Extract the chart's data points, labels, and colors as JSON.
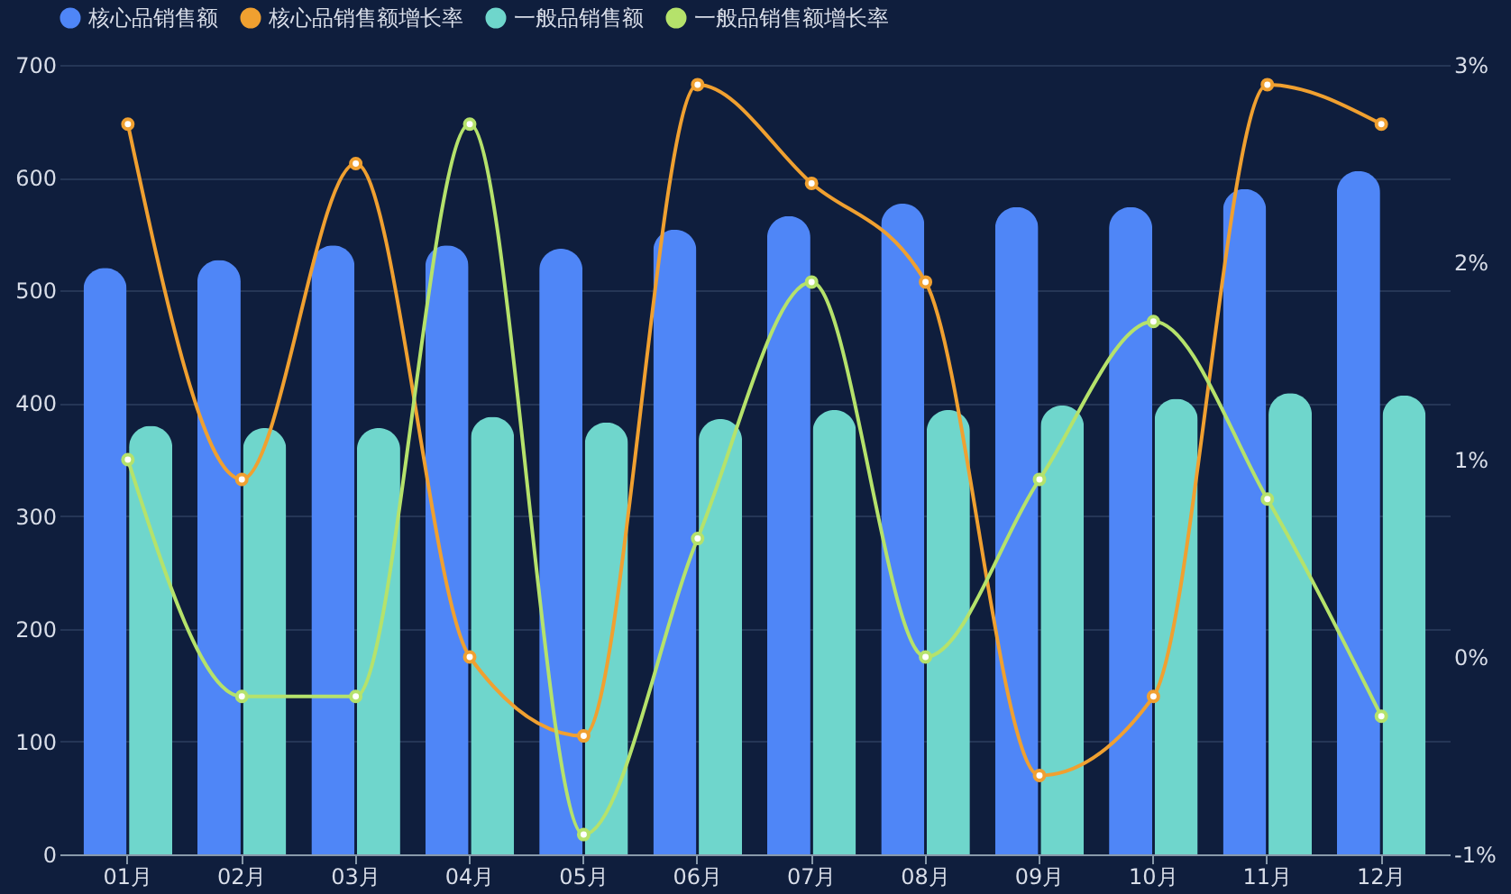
{
  "chart_data": {
    "type": "bar",
    "categories": [
      "01月",
      "02月",
      "03月",
      "04月",
      "05月",
      "06月",
      "07月",
      "08月",
      "09月",
      "10月",
      "11月",
      "12月"
    ],
    "series": [
      {
        "name": "核心品销售额",
        "color": "#4f86f7",
        "values": [
          520,
          527,
          540,
          540,
          537,
          554,
          566,
          577,
          574,
          574,
          590,
          606
        ]
      },
      {
        "name": "核心品销售额增长率",
        "type": "line",
        "axis": "y2",
        "color": "#f0a030",
        "marker": "circle",
        "values": [
          2.7,
          0.9,
          2.5,
          0,
          -0.4,
          2.9,
          2.4,
          1.9,
          -0.6,
          -0.2,
          2.9,
          2.7
        ]
      },
      {
        "name": "一般品销售额",
        "color": "#6fd6cc",
        "values": [
          380,
          378,
          378,
          388,
          383,
          386,
          394,
          394,
          398,
          404,
          409,
          407
        ]
      },
      {
        "name": "一般品销售额增长率",
        "type": "line",
        "axis": "y2",
        "color": "#b5e26b",
        "marker": "circle",
        "values": [
          1.0,
          -0.2,
          -0.2,
          2.7,
          -0.9,
          0.6,
          1.9,
          0,
          0.9,
          1.7,
          0.8,
          -0.3
        ]
      }
    ],
    "ylim": [
      0,
      700
    ],
    "yticks": [
      0,
      100,
      200,
      300,
      400,
      500,
      600,
      700
    ],
    "y2lim": [
      -1,
      3
    ],
    "y2ticks": [
      {
        "value": -1,
        "label": "-1%"
      },
      {
        "value": 0,
        "label": "0%"
      },
      {
        "value": 1,
        "label": "1%"
      },
      {
        "value": 2,
        "label": "2%"
      },
      {
        "value": 3,
        "label": "3%"
      }
    ],
    "grid": "y",
    "legend": "top"
  }
}
